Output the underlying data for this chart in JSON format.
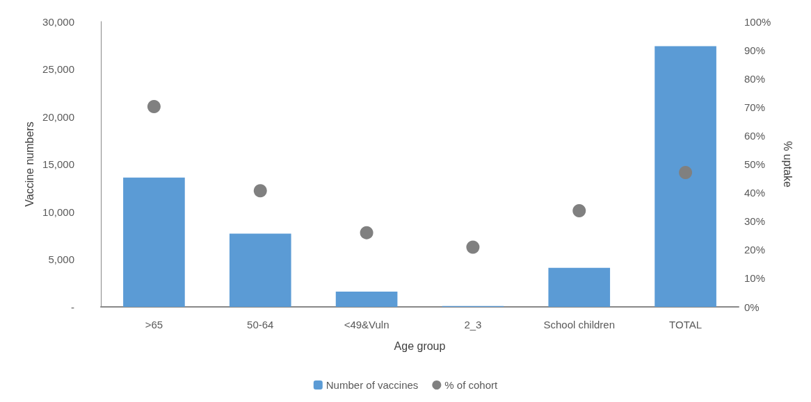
{
  "chart_data": {
    "type": "bar",
    "xlabel": "Age group",
    "ylabel": "Vaccine numbers",
    "y2label": "% uptake",
    "categories": [
      ">65",
      "50-64",
      "<49&Vuln",
      "2_3",
      "School children",
      "TOTAL"
    ],
    "series": [
      {
        "name": "Number of vaccines",
        "color": "#5b9bd5",
        "values": [
          13600,
          7700,
          1600,
          100,
          4100,
          27400
        ]
      },
      {
        "name": "% of cohort",
        "type": "scatter",
        "axis": "y2",
        "color": "#808080",
        "marker": "circle",
        "values": [
          70.2,
          40.7,
          26.0,
          20.9,
          33.7,
          47.1
        ]
      }
    ],
    "ylim": [
      0,
      30000
    ],
    "yticks": [
      {
        "value": 0,
        "label": "-"
      },
      {
        "value": 5000,
        "label": "5,000"
      },
      {
        "value": 10000,
        "label": "10,000"
      },
      {
        "value": 15000,
        "label": "15,000"
      },
      {
        "value": 20000,
        "label": "20,000"
      },
      {
        "value": 25000,
        "label": "25,000"
      },
      {
        "value": 30000,
        "label": "30,000"
      }
    ],
    "y2lim": [
      0,
      100
    ],
    "y2ticks": [
      {
        "value": 0,
        "label": "0%"
      },
      {
        "value": 10,
        "label": "10%"
      },
      {
        "value": 20,
        "label": "20%"
      },
      {
        "value": 30,
        "label": "30%"
      },
      {
        "value": 40,
        "label": "40%"
      },
      {
        "value": 50,
        "label": "50%"
      },
      {
        "value": 60,
        "label": "60%"
      },
      {
        "value": 70,
        "label": "70%"
      },
      {
        "value": 80,
        "label": "80%"
      },
      {
        "value": 90,
        "label": "90%"
      },
      {
        "value": 100,
        "label": "100%"
      }
    ],
    "grid": false,
    "legend": "bottom"
  }
}
